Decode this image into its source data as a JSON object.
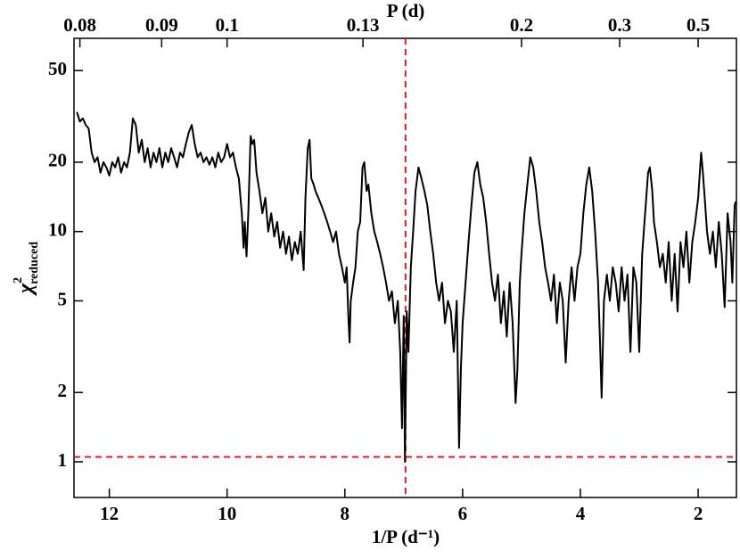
{
  "chart_data": {
    "type": "line",
    "xlabel": "1/P (d⁻¹)",
    "ylabel": {
      "symbol": "χ",
      "superscript": "2",
      "subscript": "reduced"
    },
    "x2label": "P (d)",
    "x2scale": "reciprocal",
    "x2ticks": [
      0.08,
      0.09,
      0.1,
      0.13,
      0.2,
      0.3,
      0.5
    ],
    "xlim": [
      12.6,
      1.35
    ],
    "xticks": [
      12,
      10,
      8,
      6,
      4,
      2
    ],
    "ylim": [
      0.7,
      69
    ],
    "yticks": [
      1,
      2,
      5,
      10,
      20,
      50
    ],
    "yscale": "log",
    "reference_lines": {
      "x": 6.97,
      "y": 1.05,
      "color": "#e41a1c"
    },
    "x": [
      12.55,
      12.5,
      12.45,
      12.4,
      12.35,
      12.3,
      12.25,
      12.2,
      12.15,
      12.1,
      12.05,
      12.0,
      11.95,
      11.9,
      11.85,
      11.8,
      11.75,
      11.7,
      11.65,
      11.6,
      11.55,
      11.5,
      11.45,
      11.4,
      11.35,
      11.3,
      11.25,
      11.2,
      11.15,
      11.1,
      11.05,
      11.0,
      10.95,
      10.9,
      10.85,
      10.8,
      10.75,
      10.7,
      10.65,
      10.6,
      10.55,
      10.5,
      10.45,
      10.4,
      10.35,
      10.3,
      10.25,
      10.2,
      10.15,
      10.1,
      10.05,
      10.0,
      9.95,
      9.9,
      9.85,
      9.8,
      9.75,
      9.72,
      9.7,
      9.67,
      9.64,
      9.6,
      9.57,
      9.54,
      9.5,
      9.45,
      9.4,
      9.35,
      9.3,
      9.25,
      9.2,
      9.15,
      9.1,
      9.05,
      9.0,
      8.95,
      8.9,
      8.85,
      8.8,
      8.75,
      8.7,
      8.67,
      8.63,
      8.6,
      8.57,
      8.53,
      8.5,
      8.45,
      8.4,
      8.35,
      8.3,
      8.25,
      8.2,
      8.15,
      8.1,
      8.05,
      8.0,
      7.97,
      7.94,
      7.92,
      7.9,
      7.86,
      7.82,
      7.78,
      7.74,
      7.7,
      7.67,
      7.63,
      7.6,
      7.55,
      7.5,
      7.45,
      7.4,
      7.35,
      7.3,
      7.25,
      7.2,
      7.15,
      7.1,
      7.06,
      7.03,
      7.0,
      6.98,
      6.95,
      6.92,
      6.88,
      6.84,
      6.8,
      6.75,
      6.7,
      6.65,
      6.6,
      6.55,
      6.5,
      6.45,
      6.4,
      6.35,
      6.3,
      6.25,
      6.2,
      6.15,
      6.1,
      6.06,
      6.03,
      6.0,
      5.95,
      5.9,
      5.85,
      5.8,
      5.75,
      5.7,
      5.65,
      5.6,
      5.55,
      5.5,
      5.45,
      5.4,
      5.35,
      5.3,
      5.25,
      5.2,
      5.15,
      5.1,
      5.07,
      5.03,
      5.0,
      4.95,
      4.9,
      4.85,
      4.8,
      4.75,
      4.7,
      4.65,
      4.6,
      4.55,
      4.5,
      4.45,
      4.4,
      4.35,
      4.3,
      4.25,
      4.2,
      4.15,
      4.1,
      4.05,
      4.0,
      3.95,
      3.9,
      3.85,
      3.8,
      3.75,
      3.7,
      3.67,
      3.64,
      3.6,
      3.55,
      3.5,
      3.45,
      3.4,
      3.35,
      3.3,
      3.25,
      3.2,
      3.15,
      3.1,
      3.05,
      3.0,
      2.95,
      2.9,
      2.85,
      2.82,
      2.78,
      2.75,
      2.7,
      2.65,
      2.6,
      2.55,
      2.5,
      2.45,
      2.4,
      2.35,
      2.3,
      2.25,
      2.2,
      2.15,
      2.1,
      2.05,
      2.0,
      1.95,
      1.92,
      1.88,
      1.85,
      1.8,
      1.75,
      1.7,
      1.65,
      1.6,
      1.55,
      1.5,
      1.45,
      1.42,
      1.38,
      1.36
    ],
    "series": [
      {
        "color": "#000000",
        "values": [
          33,
          30,
          31,
          29,
          28,
          22,
          20,
          21,
          18,
          20,
          19,
          17.5,
          20,
          19,
          21,
          18,
          20,
          19,
          22,
          31,
          29,
          22,
          25,
          20,
          23,
          19,
          22,
          20,
          23,
          19,
          22,
          20,
          23,
          21,
          19,
          22,
          21,
          24,
          27,
          29,
          24,
          21,
          22,
          20,
          21,
          19.5,
          21,
          19,
          22,
          20,
          21,
          24,
          21,
          22,
          19,
          17,
          12,
          8.5,
          11,
          7.8,
          12,
          26,
          24,
          25,
          18,
          15,
          12,
          14,
          10,
          12,
          9.5,
          11,
          8.5,
          10,
          8,
          9.5,
          7.5,
          9,
          8,
          10,
          6.8,
          14,
          23,
          25,
          17,
          16,
          15,
          14,
          13,
          12,
          11,
          10,
          9,
          10,
          8,
          7,
          6,
          7,
          4.2,
          3.3,
          5,
          6,
          7,
          10,
          11,
          19,
          20,
          15,
          16,
          12,
          10,
          9,
          8,
          7,
          6,
          5,
          5.5,
          4,
          5,
          3,
          1.4,
          4.3,
          1.0,
          4.5,
          3,
          7,
          10,
          15,
          19,
          17,
          15,
          13,
          10,
          8,
          6,
          5,
          6,
          4,
          5,
          4.5,
          3,
          5,
          1.15,
          2.5,
          4,
          6,
          9,
          13,
          18,
          20,
          16,
          14,
          11,
          8,
          6,
          5,
          6.5,
          4,
          5.5,
          3.5,
          6,
          4,
          1.8,
          2.5,
          6,
          8,
          12,
          16,
          21,
          19,
          15,
          11,
          9,
          7,
          6,
          5,
          6.5,
          4,
          6,
          5,
          2.7,
          5,
          7,
          5,
          7,
          8,
          12,
          16,
          19,
          15,
          10,
          6,
          3.5,
          1.9,
          5,
          6.5,
          5,
          7,
          6,
          4.5,
          7,
          5,
          6.5,
          3,
          7,
          6,
          3,
          8,
          12,
          18,
          19,
          15,
          11,
          9,
          7,
          8,
          6,
          9,
          5,
          8,
          4.5,
          9,
          7,
          10,
          6,
          9,
          11,
          14,
          22,
          18,
          13,
          10,
          8,
          10,
          7,
          11,
          8,
          4.7,
          12,
          9,
          6,
          13,
          13.5
        ]
      }
    ]
  }
}
